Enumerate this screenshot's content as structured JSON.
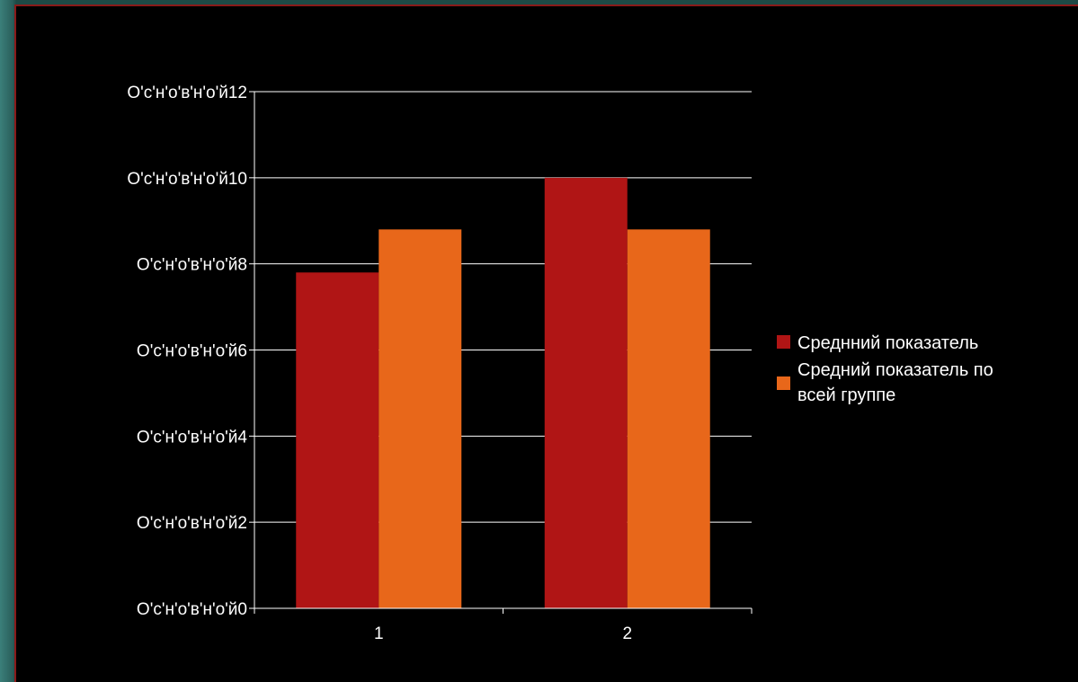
{
  "chart_data": {
    "type": "bar",
    "categories": [
      "1",
      "2"
    ],
    "series": [
      {
        "name": "Среднний показатель",
        "values": [
          7.8,
          10.0
        ],
        "color": "#b01515"
      },
      {
        "name_lines": [
          "Средний показатель по",
          "всей группе"
        ],
        "values": [
          8.8,
          8.8
        ],
        "color": "#e8671a"
      }
    ],
    "ylim": [
      0,
      12
    ],
    "yticks": [
      0,
      2,
      4,
      6,
      8,
      10,
      12
    ],
    "ytick_labels": [
      "О'с'н'о'в'н'о'й0",
      "О'с'н'о'в'н'о'й2",
      "О'с'н'о'в'н'о'й4",
      "О'с'н'о'в'н'о'й6",
      "О'с'н'о'в'н'о'й8",
      "О'с'н'о'в'н'о'й10",
      "О'с'н'о'в'н'о'й12"
    ],
    "grid": true,
    "legend_position": "right",
    "title": "",
    "xlabel": "",
    "ylabel": ""
  },
  "colors": {
    "background": "#000000",
    "grid": "#ffffff",
    "axis": "#ffffff",
    "text": "#ffffff"
  }
}
